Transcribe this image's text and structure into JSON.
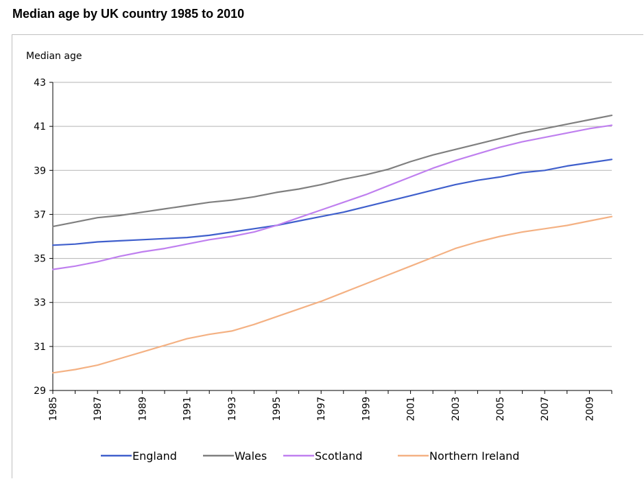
{
  "chart_data": {
    "type": "line",
    "title": "Median age by UK country 1985 to 2010",
    "ylabel": "Median age",
    "xlabel": "",
    "ylim": [
      29,
      43
    ],
    "yticks": [
      29,
      31,
      33,
      35,
      37,
      39,
      41,
      43
    ],
    "xlim": [
      1985,
      2010
    ],
    "xtick_labels": [
      "1985",
      "1987",
      "1989",
      "1991",
      "1993",
      "1995",
      "1997",
      "1999",
      "2001",
      "2003",
      "2005",
      "2007",
      "2009"
    ],
    "grid": true,
    "legend_position": "bottom",
    "x": [
      1985,
      1986,
      1987,
      1988,
      1989,
      1990,
      1991,
      1992,
      1993,
      1994,
      1995,
      1996,
      1997,
      1998,
      1999,
      2000,
      2001,
      2002,
      2003,
      2004,
      2005,
      2006,
      2007,
      2008,
      2009,
      2010
    ],
    "series": [
      {
        "name": "England",
        "color": "#3f5fcc",
        "values": [
          35.6,
          35.65,
          35.75,
          35.8,
          35.85,
          35.9,
          35.95,
          36.05,
          36.2,
          36.35,
          36.5,
          36.7,
          36.9,
          37.1,
          37.35,
          37.6,
          37.85,
          38.1,
          38.35,
          38.55,
          38.7,
          38.9,
          39.0,
          39.2,
          39.35,
          39.5
        ]
      },
      {
        "name": "Wales",
        "color": "#7f7f7f",
        "values": [
          36.45,
          36.65,
          36.85,
          36.95,
          37.1,
          37.25,
          37.4,
          37.55,
          37.65,
          37.8,
          38.0,
          38.15,
          38.35,
          38.6,
          38.8,
          39.05,
          39.4,
          39.7,
          39.95,
          40.2,
          40.45,
          40.7,
          40.9,
          41.1,
          41.3,
          41.5
        ]
      },
      {
        "name": "Scotland",
        "color": "#bf7fef",
        "values": [
          34.5,
          34.65,
          34.85,
          35.1,
          35.3,
          35.45,
          35.65,
          35.85,
          36.0,
          36.2,
          36.5,
          36.85,
          37.2,
          37.55,
          37.9,
          38.3,
          38.7,
          39.1,
          39.45,
          39.75,
          40.05,
          40.3,
          40.5,
          40.7,
          40.9,
          41.05
        ]
      },
      {
        "name": "Northern Ireland",
        "color": "#f4b183",
        "values": [
          29.8,
          29.95,
          30.15,
          30.45,
          30.75,
          31.05,
          31.35,
          31.55,
          31.7,
          32.0,
          32.35,
          32.7,
          33.05,
          33.45,
          33.85,
          34.25,
          34.65,
          35.05,
          35.45,
          35.75,
          36.0,
          36.2,
          36.35,
          36.5,
          36.7,
          36.9
        ]
      }
    ]
  }
}
